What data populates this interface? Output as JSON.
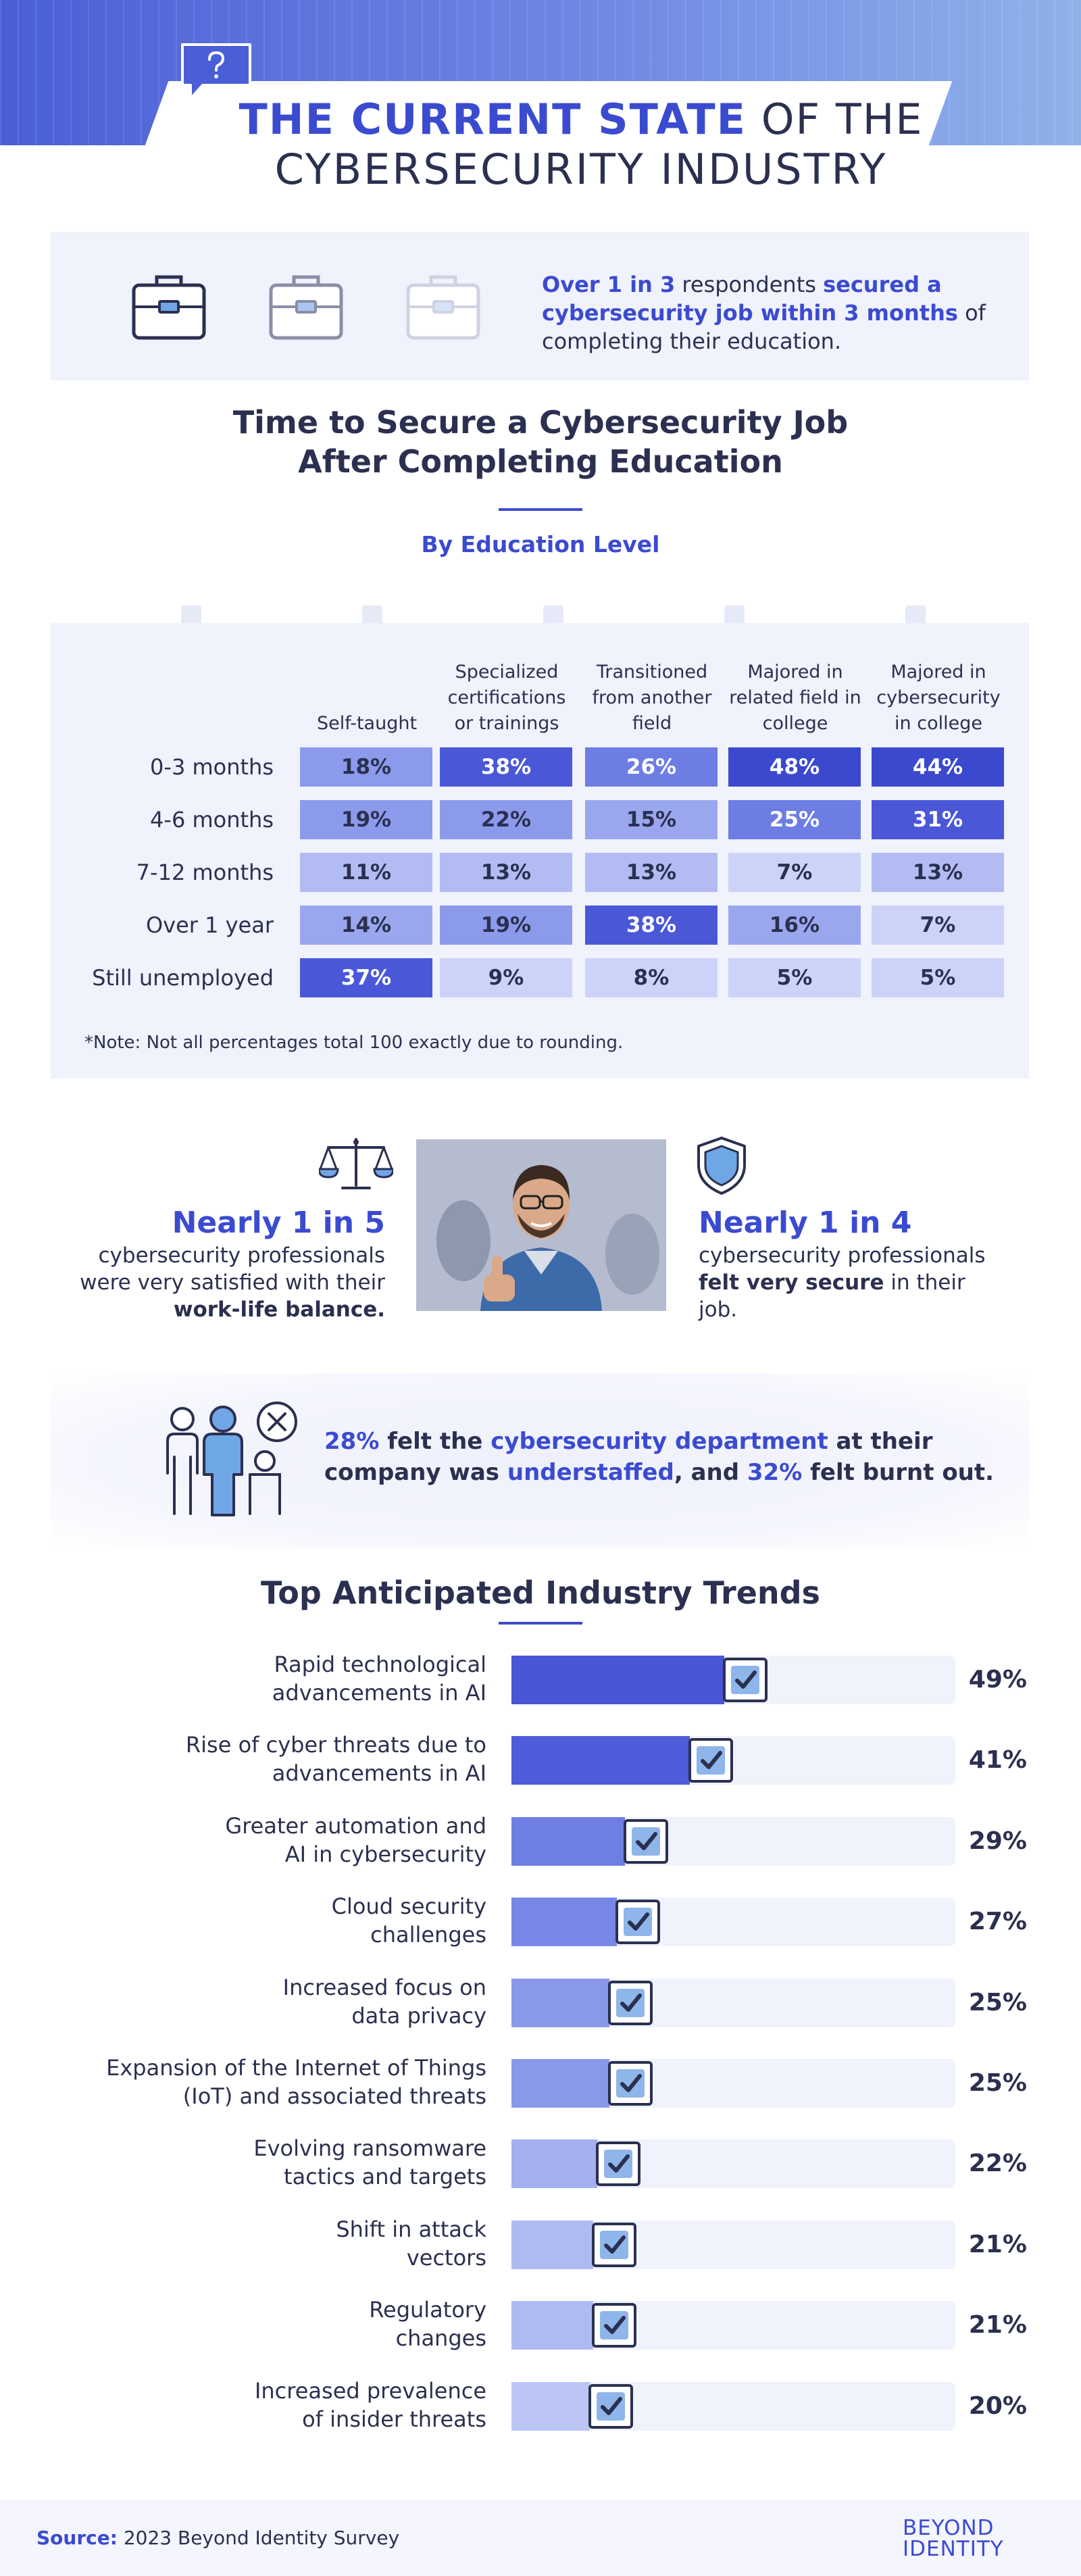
{
  "header": {
    "title_highlight": "THE CURRENT STATE",
    "title_rest": " OF THE",
    "title_line2": "CYBERSECURITY INDUSTRY"
  },
  "callout1": {
    "highlight1": "Over 1 in 3",
    "text1": " respondents ",
    "highlight2": "secured a cybersecurity job within 3 months",
    "text2": " of completing their education."
  },
  "section1": {
    "title": "Time to Secure a Cybersecurity Job After Completing Education",
    "subtitle": "By Education Level"
  },
  "table": {
    "columns": [
      "Self-taught",
      "Specialized certifications or trainings",
      "Transitioned from another field",
      "Majored in related field in college",
      "Majored in cybersecurity in college"
    ],
    "rows": [
      {
        "label": "0-3 months",
        "values": [
          "18%",
          "38%",
          "26%",
          "48%",
          "44%"
        ]
      },
      {
        "label": "4-6 months",
        "values": [
          "19%",
          "22%",
          "15%",
          "25%",
          "31%"
        ]
      },
      {
        "label": "7-12 months",
        "values": [
          "11%",
          "13%",
          "13%",
          "7%",
          "13%"
        ]
      },
      {
        "label": "Over 1 year",
        "values": [
          "14%",
          "19%",
          "38%",
          "16%",
          "7%"
        ]
      },
      {
        "label": "Still unemployed",
        "values": [
          "37%",
          "9%",
          "8%",
          "5%",
          "5%"
        ]
      }
    ],
    "note": "*Note: Not all percentages total 100 exactly due to rounding."
  },
  "stats": {
    "left_big": "Nearly 1 in 5",
    "left_text": "cybersecurity professionals were very satisfied with their ",
    "left_bold": "work-life balance.",
    "right_big": "Nearly 1 in 4",
    "right_text": "cybersecurity professionals ",
    "right_bold": "felt very secure",
    "right_text2": " in their job."
  },
  "callout2": {
    "p1": "28%",
    "t1": " felt the ",
    "p2": "cybersecurity department",
    "t2": " at their company was ",
    "p3": "understaffed",
    "t3": ", and ",
    "p4": "32%",
    "t4": " felt burnt out."
  },
  "chart_data": {
    "type": "bar",
    "title": "Top Anticipated Industry Trends",
    "orientation": "horizontal",
    "categories": [
      [
        "Rapid technological",
        "advancements in AI"
      ],
      [
        "Rise of cyber threats due to",
        "advancements in AI"
      ],
      [
        "Greater automation and",
        "AI in cybersecurity"
      ],
      [
        "Cloud security",
        "challenges"
      ],
      [
        "Increased focus on",
        "data privacy"
      ],
      [
        "Expansion of the Internet of Things",
        "(IoT) and associated threats"
      ],
      [
        "Evolving ransomware",
        "tactics and targets"
      ],
      [
        "Shift in attack",
        "vectors"
      ],
      [
        "Regulatory",
        "changes"
      ],
      [
        "Increased prevalence",
        "of insider threats"
      ]
    ],
    "values": [
      49,
      41,
      29,
      27,
      25,
      25,
      22,
      21,
      21,
      20
    ],
    "labels": [
      "49%",
      "41%",
      "29%",
      "27%",
      "25%",
      "25%",
      "22%",
      "21%",
      "21%",
      "20%"
    ],
    "xlim": [
      0,
      100
    ],
    "bar_colors": [
      "#4a55d6",
      "#4f5cd9",
      "#6f7ee3",
      "#7886e5",
      "#8a98ea",
      "#8a98ea",
      "#a3afef",
      "#b0baf2",
      "#b0baf2",
      "#bcc6f5"
    ]
  },
  "footer": {
    "source_label": "Source:",
    "source_text": " 2023 Beyond Identity Survey",
    "logo_line1": "BEYOND",
    "logo_line2": "IDENTITY"
  },
  "colors": {
    "accent": "#3b4bd0",
    "text": "#2b3050",
    "panel": "#f0f2fc"
  }
}
